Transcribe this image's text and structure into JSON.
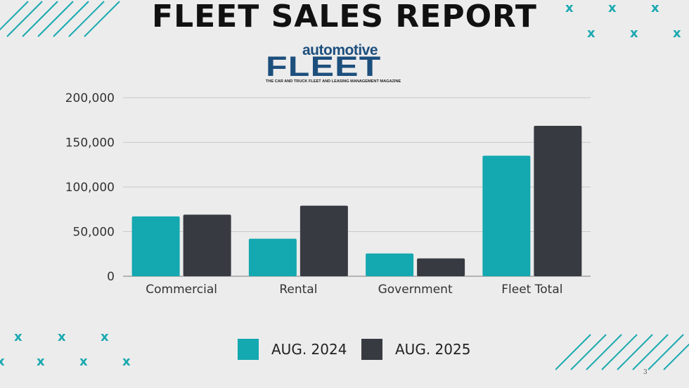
{
  "page_title": "FLEET SALES REPORT",
  "logo": {
    "word": "automotive",
    "brand": "FLEET",
    "tagline": "THE CAR AND TRUCK FLEET AND LEASING MANAGEMENT MAGAZINE"
  },
  "page_number": "3",
  "decor": {
    "x_glyph": "x"
  },
  "colors": {
    "aug_2024": "#14a8b0",
    "aug_2025": "#373a41",
    "accent": "#1aa9b0"
  },
  "chart_data": {
    "type": "bar",
    "categories": [
      "Commercial",
      "Rental",
      "Government",
      "Fleet Total"
    ],
    "series": [
      {
        "name": "AUG. 2024",
        "values": [
          67000,
          42000,
          25500,
          135000
        ]
      },
      {
        "name": "AUG. 2025",
        "values": [
          69000,
          79000,
          20000,
          168500
        ]
      }
    ],
    "yticks": [
      "200,000",
      "150,000",
      "100,000",
      "50,000",
      "0"
    ],
    "ylim": [
      0,
      200000
    ],
    "grid": true,
    "legend": "bottom"
  }
}
